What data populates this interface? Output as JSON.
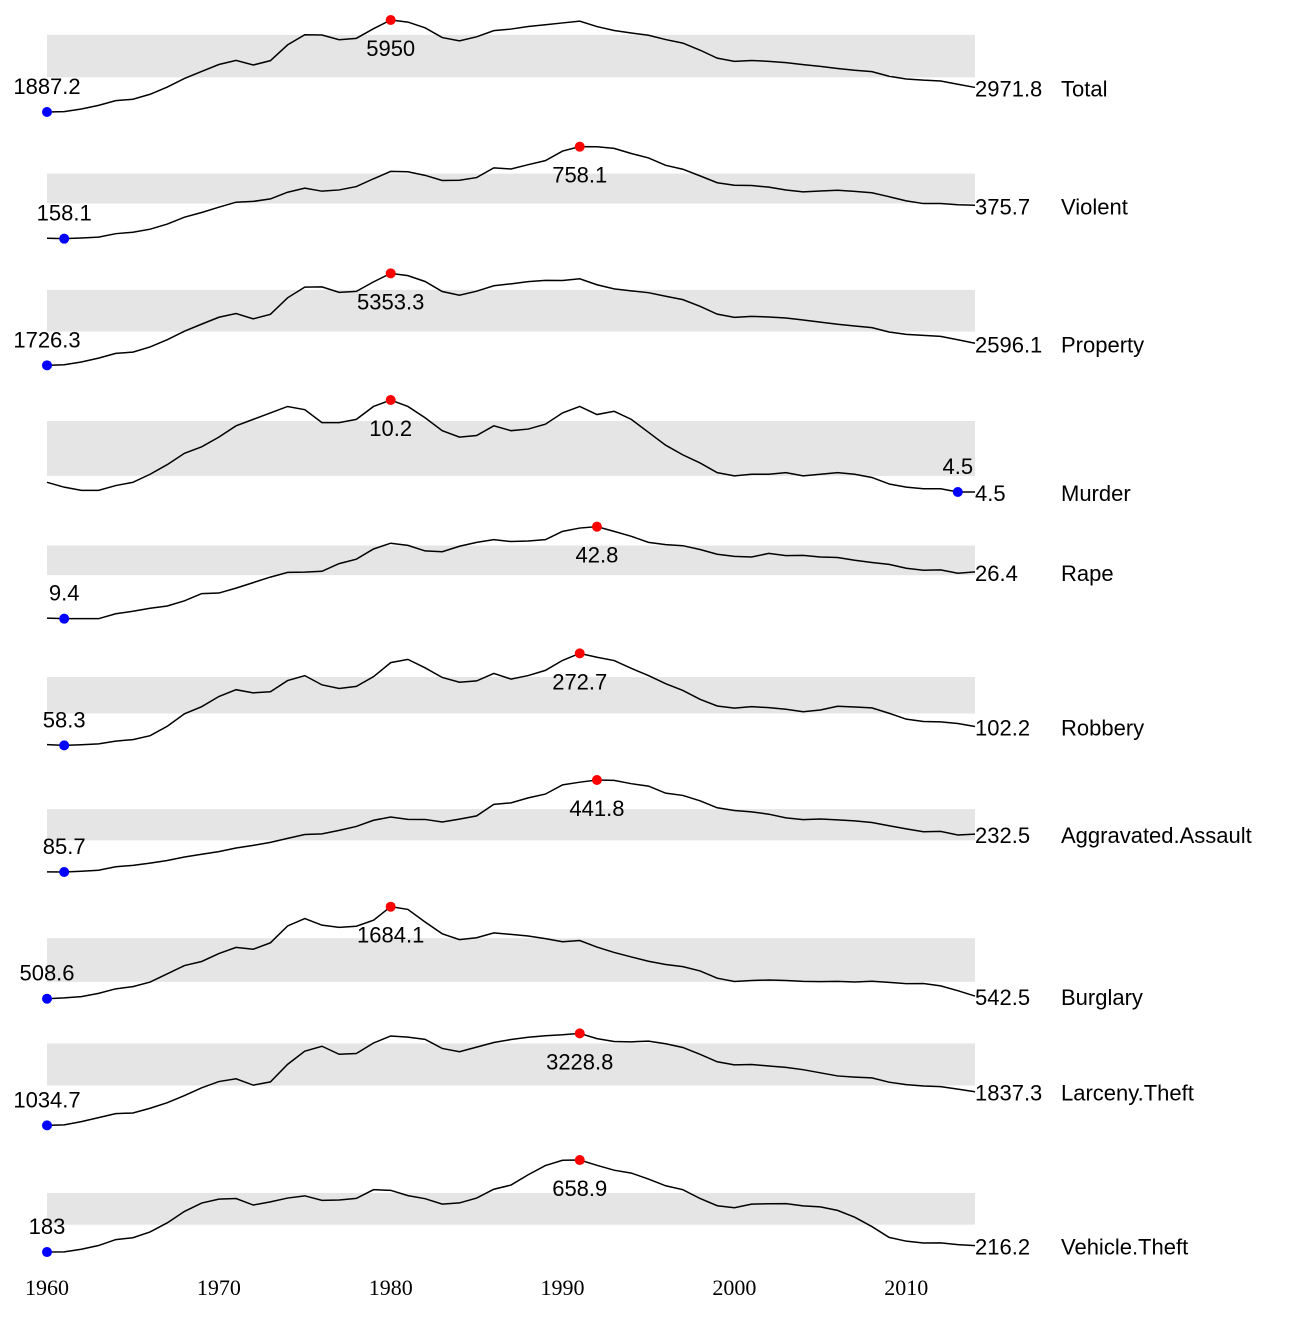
{
  "chart_data": {
    "type": "sparkline",
    "x": [
      1960,
      1961,
      1962,
      1963,
      1964,
      1965,
      1966,
      1967,
      1968,
      1969,
      1970,
      1971,
      1972,
      1973,
      1974,
      1975,
      1976,
      1977,
      1978,
      1979,
      1980,
      1981,
      1982,
      1983,
      1984,
      1985,
      1986,
      1987,
      1988,
      1989,
      1990,
      1991,
      1992,
      1993,
      1994,
      1995,
      1996,
      1997,
      1998,
      1999,
      2000,
      2001,
      2002,
      2003,
      2004,
      2005,
      2006,
      2007,
      2008,
      2009,
      2010,
      2011,
      2012,
      2013,
      2014
    ],
    "xlim": [
      1960,
      2014
    ],
    "xticks": [
      1960,
      1970,
      1980,
      1990,
      2000,
      2010
    ],
    "line_color": "#000000",
    "min_color": "#0000ff",
    "max_color": "#ff0000",
    "band_color": "#e5e5e5",
    "series": [
      {
        "name": "Total",
        "values": [
          1887.2,
          1906.1,
          2019.8,
          2180.3,
          2388.1,
          2449.0,
          2670.8,
          2989.7,
          3370.2,
          3680.0,
          3984.5,
          4164.7,
          3961.4,
          4154.4,
          4850.4,
          5298.5,
          5287.3,
          5077.6,
          5140.3,
          5565.5,
          5950,
          5858.2,
          5603.7,
          5175.0,
          5031.3,
          5207.1,
          5480.4,
          5550.0,
          5664.2,
          5741.0,
          5820.3,
          5897.8,
          5660.2,
          5484.4,
          5373.5,
          5275.9,
          5086.6,
          4930.0,
          4619.3,
          4266.5,
          4124.8,
          4162.6,
          4125.0,
          4067.0,
          3977.3,
          3900.6,
          3808.9,
          3730.4,
          3669.0,
          3465.5,
          3346.6,
          3292.5,
          3255.8,
          3112.4,
          2971.8
        ]
      },
      {
        "name": "Violent",
        "values": [
          160.9,
          158.1,
          162.3,
          168.2,
          190.6,
          200.2,
          220.0,
          253.2,
          298.4,
          328.7,
          363.5,
          396.0,
          401.0,
          417.4,
          461.1,
          487.8,
          467.8,
          475.9,
          497.8,
          548.9,
          596.6,
          594.3,
          571.1,
          537.7,
          539.2,
          556.6,
          620.1,
          612.5,
          640.6,
          666.9,
          729.6,
          758.1,
          757.7,
          747.1,
          713.6,
          684.5,
          636.6,
          611.0,
          567.6,
          523.0,
          506.5,
          504.5,
          494.4,
          475.8,
          463.2,
          469.0,
          473.6,
          466.9,
          457.5,
          431.9,
          404.5,
          387.1,
          387.8,
          379.1,
          375.7
        ]
      },
      {
        "name": "Property",
        "values": [
          1726.3,
          1747.9,
          1857.5,
          2012.1,
          2197.5,
          2248.8,
          2450.9,
          2736.5,
          3071.8,
          3351.3,
          3621.0,
          3768.8,
          3560.4,
          3737.0,
          4389.3,
          4810.7,
          4819.5,
          4601.7,
          4642.5,
          5016.6,
          5353.3,
          5263.9,
          5032.5,
          4637.4,
          4492.1,
          4650.5,
          4862.6,
          4940.3,
          5027.1,
          5077.9,
          5073.1,
          5140.2,
          4903.7,
          4740.0,
          4660.2,
          4590.5,
          4451.0,
          4316.3,
          4052.5,
          3743.6,
          3618.3,
          3658.1,
          3630.6,
          3591.2,
          3514.1,
          3431.5,
          3346.6,
          3276.4,
          3214.6,
          3041.3,
          2945.9,
          2905.4,
          2868.0,
          2733.6,
          2596.1
        ]
      },
      {
        "name": "Murder",
        "values": [
          5.1,
          4.8,
          4.6,
          4.6,
          4.9,
          5.1,
          5.6,
          6.2,
          6.9,
          7.3,
          7.9,
          8.6,
          9.0,
          9.4,
          9.8,
          9.6,
          8.8,
          8.8,
          9.0,
          9.8,
          10.2,
          9.8,
          9.1,
          8.3,
          7.9,
          8.0,
          8.6,
          8.3,
          8.4,
          8.7,
          9.4,
          9.8,
          9.3,
          9.5,
          9.0,
          8.2,
          7.4,
          6.8,
          6.3,
          5.7,
          5.5,
          5.6,
          5.6,
          5.7,
          5.5,
          5.6,
          5.7,
          5.6,
          5.4,
          5.0,
          4.8,
          4.7,
          4.7,
          4.5,
          4.5
        ]
      },
      {
        "name": "Rape",
        "values": [
          9.6,
          9.4,
          9.4,
          9.4,
          11.2,
          12.1,
          13.2,
          14.0,
          15.9,
          18.5,
          18.7,
          20.5,
          22.5,
          24.5,
          26.2,
          26.3,
          26.6,
          29.4,
          31.0,
          34.7,
          36.8,
          36.0,
          34.0,
          33.7,
          35.7,
          37.1,
          38.1,
          37.4,
          37.6,
          38.1,
          41.1,
          42.3,
          42.8,
          41.1,
          39.3,
          37.1,
          36.3,
          35.9,
          34.5,
          32.8,
          32.0,
          31.8,
          33.1,
          32.3,
          32.4,
          31.8,
          31.6,
          30.6,
          29.8,
          29.1,
          27.7,
          27.0,
          27.1,
          25.9,
          26.4
        ]
      },
      {
        "name": "Robbery",
        "values": [
          60.1,
          58.3,
          59.7,
          61.8,
          68.2,
          71.7,
          80.8,
          102.8,
          131.8,
          148.4,
          172.1,
          188.0,
          180.7,
          183.1,
          209.3,
          220.8,
          199.3,
          190.7,
          195.8,
          218.4,
          251.1,
          258.7,
          238.9,
          216.5,
          205.4,
          208.5,
          226.0,
          212.7,
          220.9,
          233.0,
          256.3,
          272.7,
          263.7,
          255.9,
          237.8,
          220.9,
          201.9,
          186.2,
          165.5,
          150.1,
          145.0,
          148.5,
          146.1,
          142.5,
          136.7,
          140.8,
          149.4,
          147.6,
          145.7,
          133.1,
          119.3,
          113.9,
          113.1,
          109.1,
          102.2
        ]
      },
      {
        "name": "Aggravated.Assault",
        "values": [
          86.1,
          85.7,
          88.6,
          92.4,
          106.2,
          111.3,
          120.3,
          130.2,
          143.8,
          154.5,
          164.8,
          178.8,
          188.8,
          200.5,
          215.8,
          231.1,
          233.2,
          247.0,
          262.1,
          286.0,
          298.5,
          289.7,
          289.2,
          279.4,
          290.6,
          302.9,
          347.4,
          353.4,
          372.7,
          387.3,
          422.9,
          433.4,
          441.8,
          440.5,
          427.6,
          418.3,
          391.0,
          382.1,
          361.4,
          334.3,
          324.0,
          318.6,
          309.5,
          295.4,
          288.6,
          290.8,
          287.5,
          283.8,
          277.5,
          264.7,
          252.8,
          241.5,
          242.8,
          229.1,
          232.5
        ]
      },
      {
        "name": "Burglary",
        "values": [
          508.6,
          518.9,
          535.2,
          576.4,
          634.7,
          662.7,
          721.0,
          826.6,
          932.3,
          984.1,
          1084.9,
          1163.5,
          1140.8,
          1222.5,
          1437.7,
          1532.1,
          1448.2,
          1419.8,
          1434.6,
          1511.9,
          1684.1,
          1649.5,
          1488.8,
          1337.7,
          1263.7,
          1287.3,
          1349.8,
          1329.6,
          1309.2,
          1276.3,
          1235.9,
          1252.0,
          1168.4,
          1099.7,
          1042.1,
          987.0,
          945.0,
          918.8,
          863.2,
          770.4,
          728.8,
          741.8,
          747.0,
          741.0,
          730.3,
          726.9,
          729.4,
          722.5,
          731.1,
          717.7,
          701.0,
          702.2,
          672.2,
          610.5,
          542.5
        ]
      },
      {
        "name": "Larceny.Theft",
        "values": [
          1034.7,
          1045.4,
          1124.8,
          1219.1,
          1315.5,
          1329.3,
          1442.9,
          1575.8,
          1746.6,
          1930.9,
          2079.3,
          2145.5,
          1993.6,
          2071.9,
          2489.5,
          2804.8,
          2921.3,
          2729.9,
          2747.4,
          2999.1,
          3167.0,
          3139.7,
          3084.9,
          2868.9,
          2791.3,
          2901.2,
          3010.3,
          3081.3,
          3134.9,
          3171.3,
          3194.8,
          3228.8,
          3103.6,
          3033.9,
          3026.9,
          3043.2,
          2980.3,
          2891.8,
          2729.5,
          2550.7,
          2477.3,
          2485.7,
          2450.7,
          2416.5,
          2362.3,
          2287.8,
          2213.2,
          2185.4,
          2166.1,
          2064.5,
          2005.8,
          1974.1,
          1959.3,
          1899.4,
          1837.3
        ]
      },
      {
        "name": "Vehicle.Theft",
        "values": [
          183,
          183.6,
          197.4,
          216.6,
          247.4,
          256.8,
          286.9,
          334.1,
          393.0,
          436.2,
          456.8,
          459.8,
          426.1,
          442.6,
          462.2,
          473.7,
          450.0,
          451.9,
          460.5,
          505.6,
          502.2,
          474.7,
          458.9,
          430.8,
          437.1,
          462.0,
          507.8,
          529.4,
          582.9,
          630.4,
          657.8,
          658.9,
          631.6,
          606.3,
          591.3,
          560.3,
          525.7,
          505.7,
          459.9,
          422.5,
          412.2,
          430.5,
          432.9,
          433.7,
          421.5,
          416.8,
          398.4,
          363.3,
          314.7,
          258.8,
          239.1,
          229.6,
          230.4,
          221.3,
          216.2
        ]
      }
    ]
  }
}
